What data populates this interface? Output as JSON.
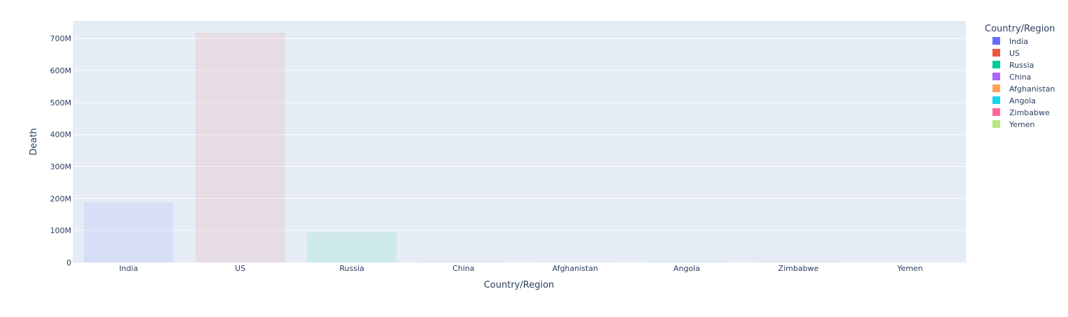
{
  "chart_data": {
    "type": "bar",
    "xlabel": "Country/Region",
    "ylabel": "Death",
    "legend_title": "Country/Region",
    "legend_position": "right",
    "grid": true,
    "ylim": [
      0,
      755000000
    ],
    "yticks": [
      0,
      100000000,
      200000000,
      300000000,
      400000000,
      500000000,
      600000000,
      700000000
    ],
    "ytick_labels": [
      "0",
      "100M",
      "200M",
      "300M",
      "400M",
      "500M",
      "600M",
      "700M"
    ],
    "categories": [
      "India",
      "US",
      "Russia",
      "China",
      "Afghanistan",
      "Angola",
      "Zimbabwe",
      "Yemen"
    ],
    "values": [
      188000000,
      718000000,
      94000000,
      1000000,
      200000,
      100000,
      100000,
      100000
    ],
    "colors": [
      "#636efa",
      "#EF553B",
      "#00cc96",
      "#ab63fa",
      "#FFA15A",
      "#19d3f3",
      "#FF6692",
      "#B6E880"
    ],
    "bar_opacity": 0.1
  }
}
